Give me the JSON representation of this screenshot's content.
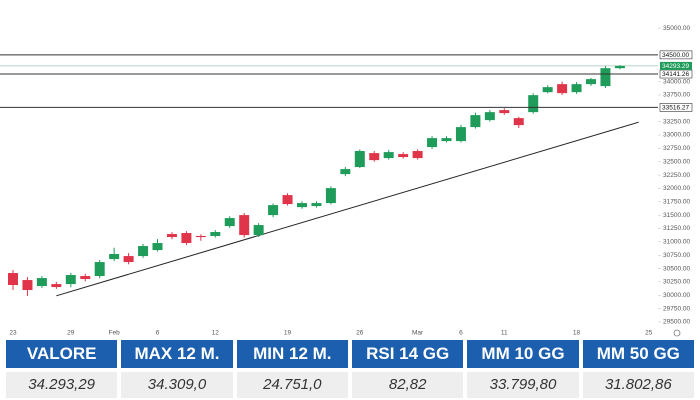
{
  "chart_data": {
    "type": "candlestick",
    "categories": [
      "23",
      null,
      null,
      null,
      "29",
      null,
      null,
      "Feb",
      null,
      null,
      "6",
      null,
      null,
      null,
      "12",
      null,
      null,
      null,
      null,
      "19",
      null,
      null,
      null,
      null,
      "26",
      null,
      null,
      null,
      "Mar",
      null,
      null,
      "6",
      null,
      null,
      "11",
      null,
      null,
      null,
      null,
      "18",
      null,
      null,
      null,
      null,
      "25"
    ],
    "open": [
      30416,
      30285,
      30173,
      30210,
      30210,
      30360,
      30360,
      30678,
      30734,
      30734,
      30846,
      31146,
      31165,
      31110,
      31110,
      31295,
      31501,
      31127,
      31501,
      31875,
      31650,
      31670,
      31726,
      32268,
      32400,
      32661,
      32568,
      32643,
      32700,
      32774,
      32886,
      32886,
      33148,
      33279,
      33466,
      33316,
      33428,
      33802,
      33952,
      33802,
      33952,
      33915,
      34251,
      null,
      null
    ],
    "high": [
      30472,
      30341,
      30360,
      30250,
      30420,
      30400,
      30660,
      30890,
      30790,
      30960,
      31050,
      31180,
      31200,
      31140,
      31220,
      31480,
      31540,
      31350,
      31720,
      31910,
      31760,
      31760,
      32040,
      32400,
      32730,
      32700,
      32720,
      32680,
      32730,
      32980,
      32980,
      33190,
      33420,
      33470,
      33500,
      33340,
      33780,
      33930,
      34000,
      33990,
      34070,
      34290,
      34309,
      null,
      null
    ],
    "low": [
      30098,
      29986,
      30135,
      30120,
      30150,
      30260,
      30320,
      30640,
      30580,
      30700,
      30820,
      31050,
      30940,
      31020,
      31080,
      31260,
      31080,
      31090,
      31460,
      31680,
      31620,
      31640,
      31700,
      32230,
      32380,
      32500,
      32540,
      32560,
      32540,
      32740,
      32860,
      32860,
      33120,
      33250,
      33380,
      33130,
      33400,
      33780,
      33750,
      33770,
      33920,
      33880,
      34230,
      null,
      null
    ],
    "close": [
      30192,
      30098,
      30322,
      30154,
      30379,
      30304,
      30622,
      30772,
      30622,
      30921,
      30978,
      31090,
      30978,
      31090,
      31184,
      31445,
      31127,
      31314,
      31688,
      31707,
      31726,
      31726,
      32006,
      32362,
      32700,
      32530,
      32680,
      32587,
      32568,
      32942,
      32942,
      33148,
      33372,
      33428,
      33410,
      33185,
      33746,
      33896,
      33784,
      33952,
      34046,
      34251,
      34293.29,
      null,
      null
    ],
    "up_color": "#1f9c5a",
    "down_color": "#e0344a",
    "ylim": [
      29350,
      35190
    ],
    "yticks": [
      {
        "value": 35000,
        "label": "35000.00"
      },
      {
        "value": 34000,
        "label": "34000.00"
      },
      {
        "value": 33750,
        "label": "33750.00"
      },
      {
        "value": 33250,
        "label": "33250.00"
      },
      {
        "value": 33000,
        "label": "33000.00"
      },
      {
        "value": 32750,
        "label": "32750.00"
      },
      {
        "value": 32500,
        "label": "32500.00"
      },
      {
        "value": 32250,
        "label": "32250.00"
      },
      {
        "value": 32000,
        "label": "32000.00"
      },
      {
        "value": 31750,
        "label": "31750.00"
      },
      {
        "value": 31500,
        "label": "31500.00"
      },
      {
        "value": 31250,
        "label": "31250.00"
      },
      {
        "value": 31000,
        "label": "31000.00"
      },
      {
        "value": 30750,
        "label": "30750.00"
      },
      {
        "value": 30500,
        "label": "30500.00"
      },
      {
        "value": 30250,
        "label": "30250.00"
      },
      {
        "value": 30000,
        "label": "30000.00"
      },
      {
        "value": 29750,
        "label": "29750.00"
      },
      {
        "value": 29500,
        "label": "29500.00"
      }
    ],
    "levels": [
      {
        "value": 34500,
        "label": "34500.00"
      },
      {
        "value": 34141.26,
        "label": "34141.26"
      },
      {
        "value": 33516.27,
        "label": "33516.27"
      }
    ],
    "last_price": {
      "value": 34293.29,
      "label": "34293.29"
    },
    "trendline": {
      "x": [
        3,
        43.3
      ],
      "values": [
        29990,
        33240
      ]
    }
  },
  "table": {
    "headers": [
      "VALORE",
      "MAX 12 M.",
      "MIN 12 M.",
      "RSI 14 GG",
      "MM 10 GG",
      "MM 50 GG"
    ],
    "rows": [
      [
        "34.293,29",
        "34.309,0",
        "24.751,0",
        "82,82",
        "33.799,80",
        "31.802,86"
      ]
    ]
  }
}
